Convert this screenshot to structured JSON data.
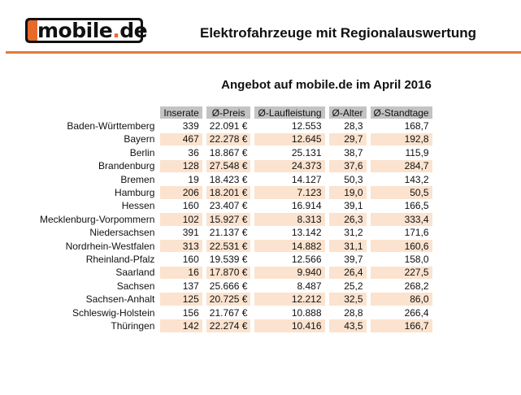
{
  "logo": {
    "text": "mobile",
    "dot": ".",
    "tld": "de"
  },
  "header": {
    "title": "Elektrofahrzeuge mit Regionalauswertung"
  },
  "table": {
    "title": "Angebot auf mobile.de im April 2016",
    "columns": [
      "Inserate",
      "Ø-Preis",
      "Ø-Laufleistung",
      "Ø-Alter",
      "Ø-Standtage"
    ],
    "rows": [
      [
        "Baden-Württemberg",
        "339",
        "22.091 €",
        "12.553",
        "28,3",
        "168,7"
      ],
      [
        "Bayern",
        "467",
        "22.278 €",
        "12.645",
        "29,7",
        "192,8"
      ],
      [
        "Berlin",
        "36",
        "18.867 €",
        "25.131",
        "38,7",
        "115,9"
      ],
      [
        "Brandenburg",
        "128",
        "27.548 €",
        "24.373",
        "37,6",
        "284,7"
      ],
      [
        "Bremen",
        "19",
        "18.423 €",
        "14.127",
        "50,3",
        "143,2"
      ],
      [
        "Hamburg",
        "206",
        "18.201 €",
        "7.123",
        "19,0",
        "50,5"
      ],
      [
        "Hessen",
        "160",
        "23.407 €",
        "16.914",
        "39,1",
        "166,5"
      ],
      [
        "Mecklenburg-Vorpommern",
        "102",
        "15.927 €",
        "8.313",
        "26,3",
        "333,4"
      ],
      [
        "Niedersachsen",
        "391",
        "21.137 €",
        "13.142",
        "31,2",
        "171,6"
      ],
      [
        "Nordrhein-Westfalen",
        "313",
        "22.531 €",
        "14.882",
        "31,1",
        "160,6"
      ],
      [
        "Rheinland-Pfalz",
        "160",
        "19.539 €",
        "12.566",
        "39,7",
        "158,0"
      ],
      [
        "Saarland",
        "16",
        "17.870 €",
        "9.940",
        "26,4",
        "227,5"
      ],
      [
        "Sachsen",
        "137",
        "25.666 €",
        "8.487",
        "25,2",
        "268,2"
      ],
      [
        "Sachsen-Anhalt",
        "125",
        "20.725 €",
        "12.212",
        "32,5",
        "86,0"
      ],
      [
        "Schleswig-Holstein",
        "156",
        "21.767 €",
        "10.888",
        "28,8",
        "266,4"
      ],
      [
        "Thüringen",
        "142",
        "22.274 €",
        "10.416",
        "43,5",
        "166,7"
      ]
    ]
  },
  "colors": {
    "accent": "#e8692a",
    "header_cell": "#c3c3c3",
    "alt_row": "#fbe3cf"
  }
}
